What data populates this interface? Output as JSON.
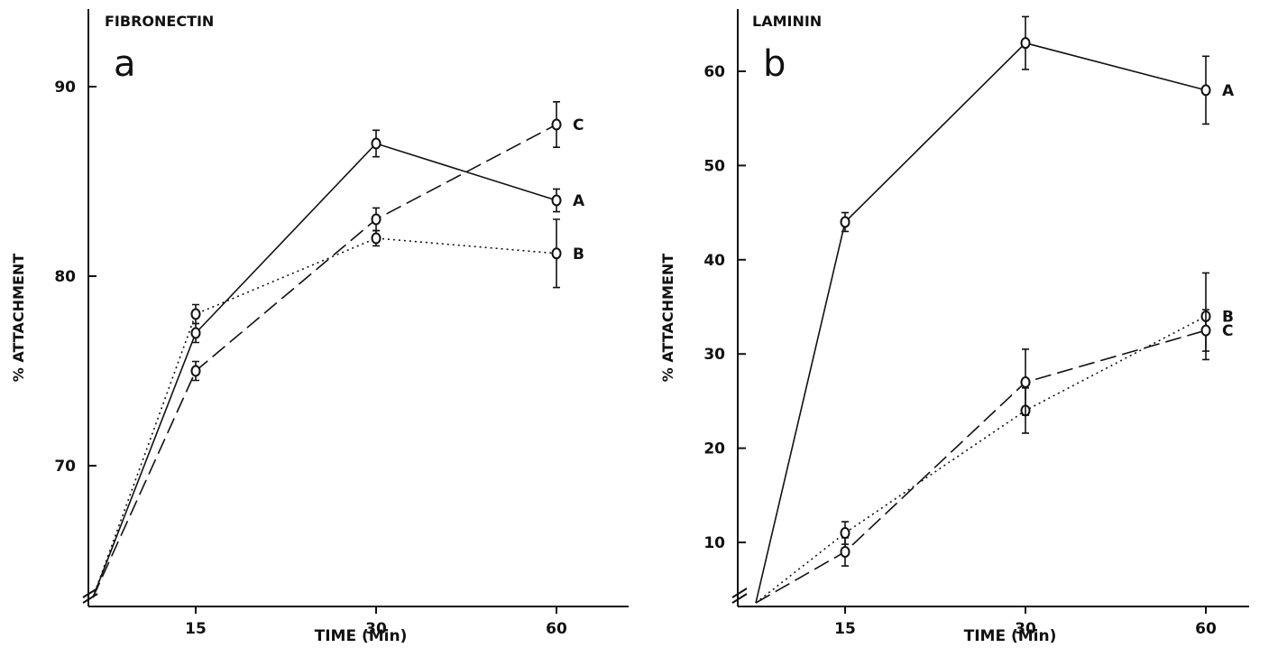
{
  "chart_data": [
    {
      "type": "line",
      "panel_letter": "a",
      "title": "FIBRONECTIN",
      "xlabel": "TIME (Min)",
      "ylabel": "% ATTACHMENT",
      "x_ticks": [
        "15",
        "30",
        "60"
      ],
      "y_ticks": [
        70,
        80,
        90
      ],
      "ylim": [
        64,
        93
      ],
      "y_axis_break": true,
      "grid": false,
      "legend": "end-of-line labels",
      "series": [
        {
          "name": "A",
          "style": "solid",
          "x": [
            "15",
            "30",
            "60"
          ],
          "y": [
            77.0,
            87.0,
            84.0
          ],
          "err": [
            0.5,
            0.7,
            0.6
          ]
        },
        {
          "name": "B",
          "style": "dotted",
          "x": [
            "15",
            "30",
            "60"
          ],
          "y": [
            78.0,
            82.0,
            81.2
          ],
          "err": [
            0.5,
            0.4,
            1.8
          ]
        },
        {
          "name": "C",
          "style": "dashed",
          "x": [
            "15",
            "30",
            "60"
          ],
          "y": [
            75.0,
            83.0,
            88.0
          ],
          "err": [
            0.5,
            0.6,
            1.2
          ]
        }
      ]
    },
    {
      "type": "line",
      "panel_letter": "b",
      "title": "LAMININ",
      "xlabel": "TIME (Min)",
      "ylabel": "% ATTACHMENT",
      "x_ticks": [
        "15",
        "30",
        "60"
      ],
      "y_ticks": [
        10,
        20,
        30,
        40,
        50,
        60
      ],
      "ylim": [
        6,
        66
      ],
      "y_axis_break": true,
      "grid": false,
      "legend": "end-of-line labels",
      "series": [
        {
          "name": "A",
          "style": "solid",
          "x": [
            "15",
            "30",
            "60"
          ],
          "y": [
            44.0,
            63.0,
            58.0
          ],
          "err": [
            1.0,
            2.8,
            3.6
          ]
        },
        {
          "name": "B",
          "style": "dotted",
          "x": [
            "15",
            "30",
            "60"
          ],
          "y": [
            11.0,
            24.0,
            34.0
          ],
          "err": [
            1.2,
            2.4,
            4.6
          ]
        },
        {
          "name": "C",
          "style": "dashed",
          "x": [
            "15",
            "30",
            "60"
          ],
          "y": [
            9.0,
            27.0,
            32.5
          ],
          "err": [
            1.5,
            3.5,
            2.2
          ]
        }
      ]
    }
  ]
}
